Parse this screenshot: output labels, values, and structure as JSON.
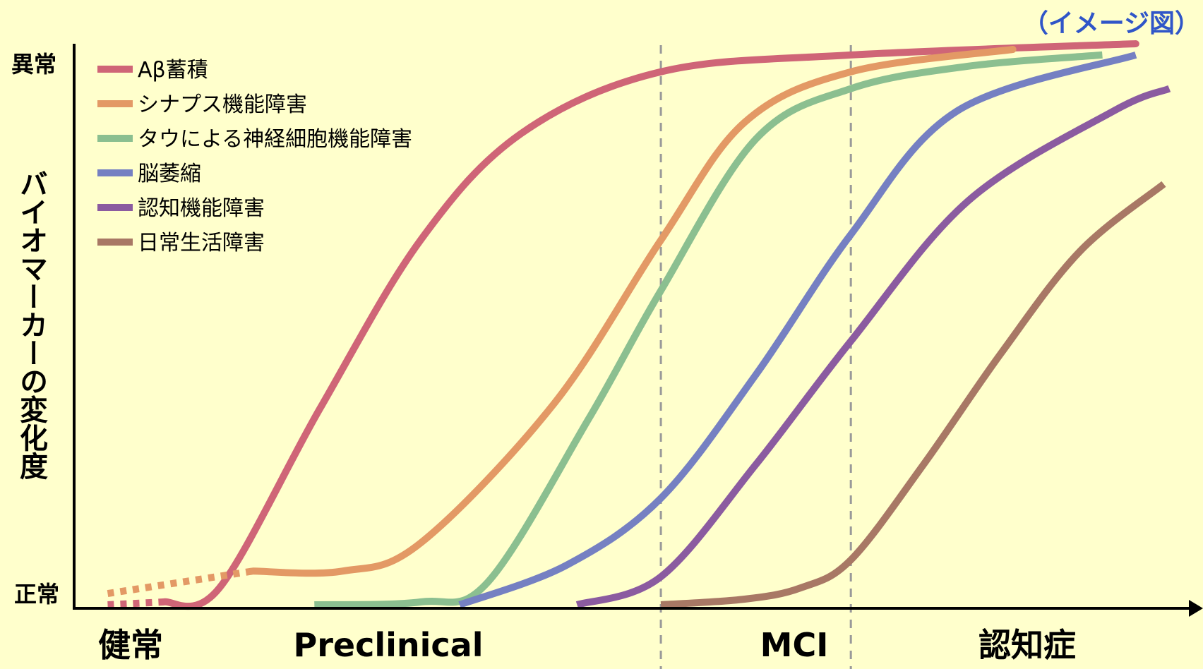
{
  "chart_data": {
    "type": "line",
    "note": "（イメージ図）",
    "ylabel": "バイオマーカーの変化度",
    "y_ticks": [
      "異常",
      "正常"
    ],
    "x_stages": [
      "健常",
      "Preclinical",
      "MCI",
      "認知症"
    ],
    "stage_boundaries": [
      0.525,
      0.695
    ],
    "legend_position": "top-left",
    "series": [
      {
        "name": "Aβ蓄積",
        "color": "#cf6577",
        "dotted_until": 0.08,
        "points": [
          [
            0.03,
            0.0
          ],
          [
            0.08,
            0.005
          ],
          [
            0.13,
            0.03
          ],
          [
            0.22,
            0.35
          ],
          [
            0.31,
            0.65
          ],
          [
            0.4,
            0.84
          ],
          [
            0.525,
            0.95
          ],
          [
            0.695,
            0.98
          ],
          [
            0.95,
            1.0
          ]
        ]
      },
      {
        "name": "シナプス機能障害",
        "color": "#e39965",
        "dotted_until": 0.16,
        "points": [
          [
            0.03,
            0.02
          ],
          [
            0.16,
            0.06
          ],
          [
            0.24,
            0.06
          ],
          [
            0.31,
            0.11
          ],
          [
            0.43,
            0.36
          ],
          [
            0.525,
            0.65
          ],
          [
            0.6,
            0.86
          ],
          [
            0.695,
            0.95
          ],
          [
            0.84,
            0.99
          ]
        ]
      },
      {
        "name": "タウによる神経細胞機能障害",
        "color": "#8bbf90",
        "points": [
          [
            0.215,
            0.0
          ],
          [
            0.31,
            0.005
          ],
          [
            0.37,
            0.04
          ],
          [
            0.46,
            0.33
          ],
          [
            0.525,
            0.56
          ],
          [
            0.61,
            0.83
          ],
          [
            0.695,
            0.92
          ],
          [
            0.8,
            0.96
          ],
          [
            0.92,
            0.98
          ]
        ]
      },
      {
        "name": "脳萎縮",
        "color": "#7580c2",
        "points": [
          [
            0.345,
            0.0
          ],
          [
            0.44,
            0.07
          ],
          [
            0.525,
            0.19
          ],
          [
            0.61,
            0.41
          ],
          [
            0.695,
            0.66
          ],
          [
            0.79,
            0.88
          ],
          [
            0.95,
            0.98
          ]
        ]
      },
      {
        "name": "認知機能障害",
        "color": "#8b5ba0",
        "points": [
          [
            0.45,
            0.0
          ],
          [
            0.525,
            0.05
          ],
          [
            0.61,
            0.25
          ],
          [
            0.695,
            0.47
          ],
          [
            0.8,
            0.72
          ],
          [
            0.93,
            0.88
          ],
          [
            0.98,
            0.92
          ]
        ]
      },
      {
        "name": "日常生活障害",
        "color": "#a87865",
        "points": [
          [
            0.525,
            0.0
          ],
          [
            0.6,
            0.01
          ],
          [
            0.65,
            0.03
          ],
          [
            0.695,
            0.08
          ],
          [
            0.76,
            0.25
          ],
          [
            0.83,
            0.45
          ],
          [
            0.9,
            0.63
          ],
          [
            0.975,
            0.75
          ]
        ]
      }
    ]
  }
}
